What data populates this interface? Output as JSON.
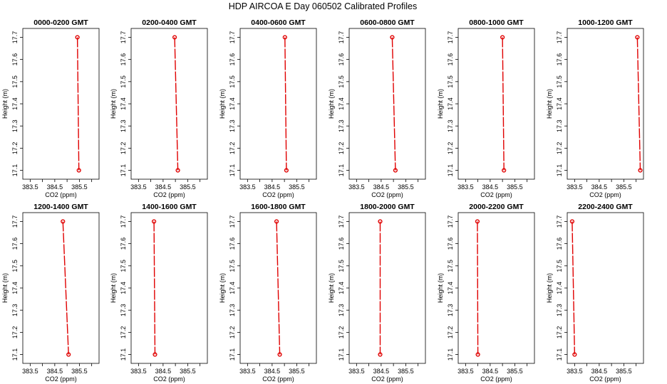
{
  "title": "HDP  AIRCOA E  Day 060502  Calibrated Profiles",
  "chart_data": {
    "type": "line",
    "xlabel": "CO2 (ppm)",
    "ylabel": "Height (m)",
    "xlim": [
      383.2,
      386.3
    ],
    "ylim": [
      17.06,
      17.74
    ],
    "xticks": [
      383.5,
      384,
      384.5,
      385,
      385.5,
      386
    ],
    "xtick_labels": [
      "383.5",
      "",
      "384.5",
      "",
      "385.5",
      ""
    ],
    "yticks": [
      17.1,
      17.2,
      17.3,
      17.4,
      17.5,
      17.6,
      17.7
    ],
    "ytick_labels": [
      "17.1",
      "17.2",
      "17.3",
      "17.4",
      "17.5",
      "17.6",
      "17.7"
    ],
    "grid": false,
    "colors": {
      "series": "#e00000"
    },
    "panels": [
      {
        "title": "0000-0200 GMT",
        "points": [
          {
            "x": 385.42,
            "y": 17.7
          },
          {
            "x": 385.48,
            "y": 17.1
          }
        ]
      },
      {
        "title": "0200-0400 GMT",
        "points": [
          {
            "x": 384.97,
            "y": 17.7
          },
          {
            "x": 385.1,
            "y": 17.1
          }
        ]
      },
      {
        "title": "0400-0600 GMT",
        "points": [
          {
            "x": 385.02,
            "y": 17.7
          },
          {
            "x": 385.08,
            "y": 17.1
          }
        ]
      },
      {
        "title": "0600-0800 GMT",
        "points": [
          {
            "x": 384.95,
            "y": 17.7
          },
          {
            "x": 385.08,
            "y": 17.1
          }
        ]
      },
      {
        "title": "0800-1000 GMT",
        "points": [
          {
            "x": 385.0,
            "y": 17.7
          },
          {
            "x": 385.06,
            "y": 17.1
          }
        ]
      },
      {
        "title": "1000-1200 GMT",
        "points": [
          {
            "x": 386.05,
            "y": 17.7
          },
          {
            "x": 386.17,
            "y": 17.1
          }
        ]
      },
      {
        "title": "1200-1400 GMT",
        "points": [
          {
            "x": 384.83,
            "y": 17.7
          },
          {
            "x": 385.06,
            "y": 17.1
          }
        ]
      },
      {
        "title": "1400-1600 GMT",
        "points": [
          {
            "x": 384.13,
            "y": 17.7
          },
          {
            "x": 384.17,
            "y": 17.1
          }
        ]
      },
      {
        "title": "1600-1800 GMT",
        "points": [
          {
            "x": 384.68,
            "y": 17.7
          },
          {
            "x": 384.81,
            "y": 17.1
          }
        ]
      },
      {
        "title": "1800-2000 GMT",
        "points": [
          {
            "x": 384.46,
            "y": 17.7
          },
          {
            "x": 384.46,
            "y": 17.1
          }
        ]
      },
      {
        "title": "2000-2200 GMT",
        "points": [
          {
            "x": 383.98,
            "y": 17.7
          },
          {
            "x": 384.0,
            "y": 17.1
          }
        ]
      },
      {
        "title": "2200-2400 GMT",
        "points": [
          {
            "x": 383.4,
            "y": 17.7
          },
          {
            "x": 383.5,
            "y": 17.1
          }
        ]
      }
    ]
  }
}
